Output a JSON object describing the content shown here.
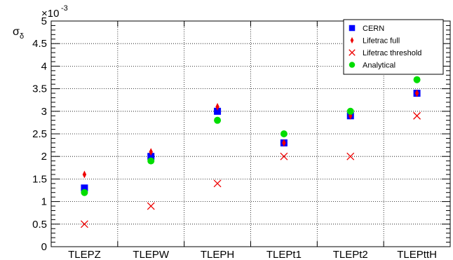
{
  "chart_data": {
    "type": "scatter",
    "categories": [
      "TLEPZ",
      "TLEPW",
      "TLEPH",
      "TLEPt1",
      "TLEPt2",
      "TLEPttH"
    ],
    "ylabel": "σ_δ",
    "ylabel_main": "σ",
    "ylabel_sub": "δ",
    "y_multiplier": "×10",
    "y_multiplier_exp": "-3",
    "ylim": [
      0,
      5
    ],
    "yticks": [
      "0",
      "0.5",
      "1",
      "1.5",
      "2",
      "2.5",
      "3",
      "3.5",
      "4",
      "4.5",
      "5"
    ],
    "grid": true,
    "legend_position": "top-right",
    "series": [
      {
        "name": "CERN",
        "marker": "square",
        "color": "#0000ff",
        "values": [
          1.3,
          2.0,
          3.0,
          2.3,
          2.9,
          3.4
        ]
      },
      {
        "name": "Lifetrac full",
        "marker": "diamond",
        "color": "#ee0000",
        "values": [
          1.6,
          2.1,
          3.1,
          2.3,
          2.9,
          3.4
        ]
      },
      {
        "name": "Lifetrac threshold",
        "marker": "cross",
        "color": "#ee0000",
        "values": [
          0.5,
          0.9,
          1.4,
          2.0,
          2.0,
          2.9
        ]
      },
      {
        "name": "Analytical",
        "marker": "circle",
        "color": "#00dd00",
        "values": [
          1.2,
          1.9,
          2.8,
          2.5,
          3.0,
          3.7
        ]
      }
    ]
  }
}
